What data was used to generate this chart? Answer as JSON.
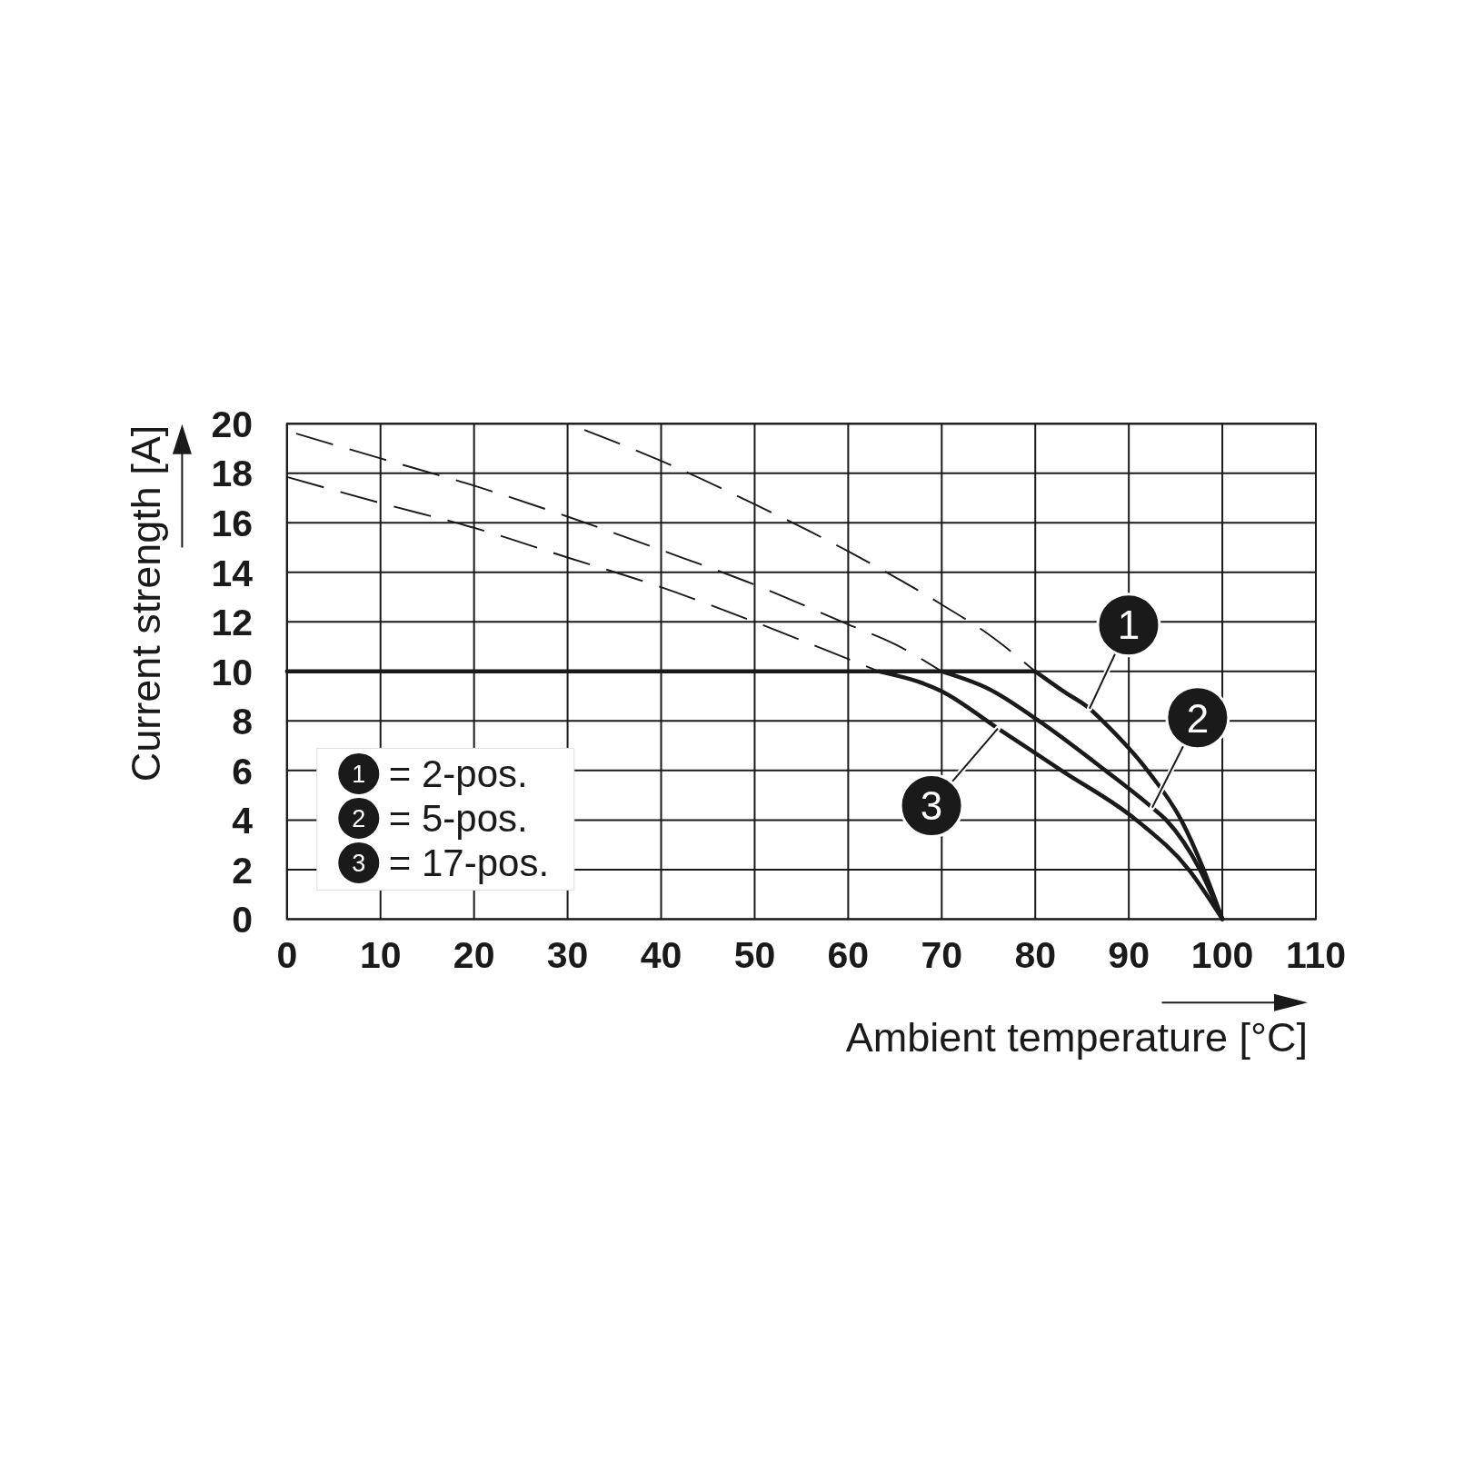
{
  "chart_data": {
    "type": "line",
    "xlabel": "Ambient temperature [°C]",
    "ylabel": "Current strength [A]",
    "xlim": [
      0,
      110
    ],
    "ylim": [
      0,
      20
    ],
    "xticks": [
      0,
      10,
      20,
      30,
      40,
      50,
      60,
      70,
      80,
      90,
      100,
      110
    ],
    "yticks": [
      0,
      2,
      4,
      6,
      8,
      10,
      12,
      14,
      16,
      18,
      20
    ],
    "grid": true,
    "legend": "bottom left",
    "series": [
      {
        "name": "= 2-pos.",
        "color": "#1a1a1a",
        "line_style": "solid",
        "x": [
          0,
          80,
          83,
          85.8,
          87.2,
          92,
          95.6,
          98,
          100
        ],
        "values": [
          10,
          10,
          9.2,
          8.5,
          8,
          6,
          4,
          2,
          0
        ]
      },
      {
        "name": "= 5-pos.",
        "color": "#1a1a1a",
        "line_style": "solid",
        "x": [
          70,
          75,
          80.4,
          87.5,
          92.5,
          94,
          97.6,
          100
        ],
        "values": [
          10,
          9.3,
          8,
          6,
          4.5,
          4,
          2,
          0
        ]
      },
      {
        "name": "= 17-pos.",
        "color": "#1a1a1a",
        "line_style": "solid",
        "x": [
          63.3,
          70,
          76,
          82.8,
          90.8,
          96.4,
          100
        ],
        "values": [
          10,
          9.2,
          7.7,
          6,
          4,
          2,
          0
        ]
      },
      {
        "color": "#1a1a1a",
        "line_style": "dashed",
        "x": [
          31.8,
          40,
          50,
          60,
          70,
          75,
          80
        ],
        "values": [
          19.75,
          18.5,
          16.75,
          14.85,
          12.7,
          11.5,
          10
        ]
      },
      {
        "color": "#1a1a1a",
        "line_style": "dashed",
        "x": [
          1,
          10,
          20,
          30,
          40,
          50,
          60,
          65,
          70
        ],
        "values": [
          19.6,
          18.6,
          17.5,
          16.25,
          14.9,
          13.5,
          11.9,
          11.1,
          10
        ]
      },
      {
        "color": "#1a1a1a",
        "line_style": "dashed",
        "x": [
          0,
          10,
          20,
          30,
          40,
          50,
          60,
          63.3
        ],
        "values": [
          17.85,
          16.8,
          15.8,
          14.6,
          13.4,
          12,
          10.5,
          10
        ]
      }
    ],
    "annotations": [
      {
        "text": "1",
        "x": 85.8,
        "y": 8.5
      },
      {
        "text": "2",
        "x": 92.5,
        "y": 4.5
      },
      {
        "text": "3",
        "x": 76,
        "y": 7.7
      }
    ]
  }
}
